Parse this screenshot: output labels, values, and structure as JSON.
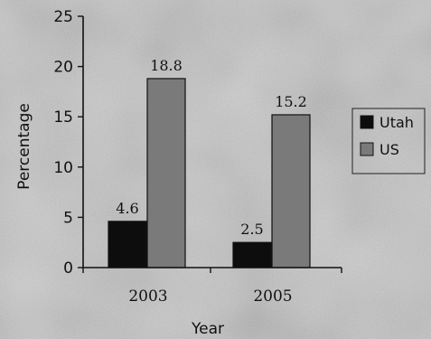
{
  "chart_data": {
    "type": "bar",
    "categories": [
      "2003",
      "2005"
    ],
    "series": [
      {
        "name": "Utah",
        "values": [
          4.6,
          2.5
        ],
        "color": "#0d0d0d"
      },
      {
        "name": "US",
        "values": [
          18.8,
          15.2
        ],
        "color": "#7a7a7a"
      }
    ],
    "data_labels": [
      [
        "4.6",
        "2.5"
      ],
      [
        "18.8",
        "15.2"
      ]
    ],
    "xlabel": "Year",
    "ylabel": "Percentage",
    "ylim": [
      0,
      25
    ],
    "yticks": [
      0,
      5,
      10,
      15,
      20,
      25
    ],
    "grid": false,
    "legend_position": "right"
  }
}
